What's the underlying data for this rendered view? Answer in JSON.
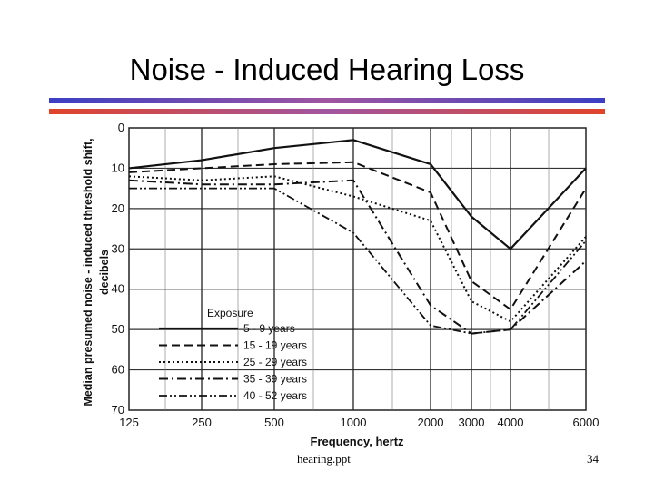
{
  "slide": {
    "title": "Noise - Induced Hearing Loss",
    "footer_left": "hearing.ppt",
    "page_number": "34",
    "colors": {
      "rule_top": "#3b3fc4",
      "rule_bottom": "#e0442a",
      "rule_mid": "#a055a0"
    }
  },
  "chart_data": {
    "type": "line",
    "title": "",
    "xlabel": "Frequency, hertz",
    "ylabel": "Median presumed noise - induced threshold shift, decibels",
    "x_categories": [
      "125",
      "250",
      "500",
      "1000",
      "2000",
      "3000",
      "4000",
      "6000"
    ],
    "y_ticks": [
      "0",
      "10",
      "20",
      "30",
      "40",
      "50",
      "60",
      "70"
    ],
    "ylim": [
      0,
      70
    ],
    "y_inverted": true,
    "grid": true,
    "legend_title": "Exposure",
    "legend_position": "bottom-left",
    "series": [
      {
        "name": "5 - 9 years",
        "style": "solid",
        "values": [
          10,
          8,
          5,
          3,
          9,
          22,
          30,
          10
        ]
      },
      {
        "name": "15 - 19 years",
        "style": "dashed",
        "values": [
          11,
          10,
          9,
          8.5,
          16,
          38,
          45,
          15
        ]
      },
      {
        "name": "25 - 29 years",
        "style": "dotted",
        "values": [
          12,
          13,
          12,
          17,
          23,
          43,
          48,
          27
        ]
      },
      {
        "name": "35 - 39 years",
        "style": "dash-dot",
        "values": [
          13,
          14,
          14,
          13,
          44,
          51,
          50,
          33
        ]
      },
      {
        "name": "40 - 52 years",
        "style": "dash-dot-dot",
        "values": [
          15,
          15,
          15,
          26,
          49,
          51,
          50,
          28
        ]
      }
    ]
  }
}
